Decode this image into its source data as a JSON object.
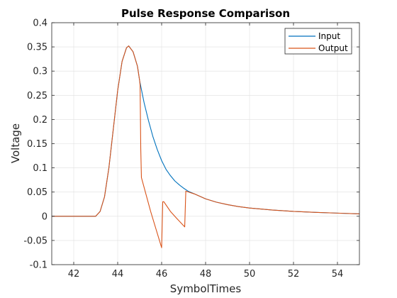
{
  "chart_data": {
    "type": "line",
    "title": "Pulse Response Comparison",
    "xlabel": "SymbolTimes",
    "ylabel": "Voltage",
    "xlim": [
      41,
      55
    ],
    "ylim": [
      -0.1,
      0.4
    ],
    "xticks": [
      42,
      44,
      46,
      48,
      50,
      52,
      54
    ],
    "yticks": [
      -0.1,
      -0.05,
      0,
      0.05,
      0.1,
      0.15,
      0.2,
      0.25,
      0.3,
      0.35,
      0.4
    ],
    "xtick_labels": [
      "42",
      "44",
      "46",
      "48",
      "50",
      "52",
      "54"
    ],
    "ytick_labels": [
      "-0.1",
      "-0.05",
      "0",
      "0.05",
      "0.1",
      "0.15",
      "0.2",
      "0.25",
      "0.3",
      "0.35",
      "0.4"
    ],
    "grid": true,
    "legend_position": "top-right",
    "series": [
      {
        "name": "Input",
        "color": "#0072bd",
        "x": [
          41,
          43.0,
          43.2,
          43.4,
          43.6,
          43.8,
          44.0,
          44.2,
          44.4,
          44.5,
          44.7,
          44.9,
          45.0,
          45.2,
          45.4,
          45.6,
          45.8,
          46.0,
          46.2,
          46.4,
          46.6,
          46.8,
          47.0,
          47.2,
          47.5,
          48.0,
          48.5,
          49.0,
          49.5,
          50.0,
          51.0,
          52.0,
          53.0,
          54.0,
          55.0
        ],
        "y": [
          0,
          0,
          0.01,
          0.04,
          0.1,
          0.18,
          0.26,
          0.32,
          0.348,
          0.352,
          0.34,
          0.31,
          0.28,
          0.235,
          0.198,
          0.165,
          0.138,
          0.115,
          0.097,
          0.084,
          0.073,
          0.065,
          0.058,
          0.052,
          0.046,
          0.036,
          0.029,
          0.024,
          0.02,
          0.017,
          0.013,
          0.01,
          0.008,
          0.0065,
          0.005
        ]
      },
      {
        "name": "Output",
        "color": "#d95319",
        "x": [
          41,
          43.0,
          43.2,
          43.4,
          43.6,
          43.8,
          44.0,
          44.2,
          44.4,
          44.5,
          44.7,
          44.9,
          45.0,
          45.02,
          45.05,
          45.08,
          45.5,
          46.0,
          46.05,
          46.1,
          46.4,
          46.7,
          47.05,
          47.1,
          47.5,
          48.0,
          48.5,
          49.0,
          49.5,
          50.0,
          51.0,
          52.0,
          53.0,
          54.0,
          55.0
        ],
        "y": [
          0,
          0,
          0.01,
          0.04,
          0.1,
          0.18,
          0.26,
          0.32,
          0.348,
          0.352,
          0.34,
          0.31,
          0.28,
          0.27,
          0.14,
          0.08,
          0.01,
          -0.065,
          0.03,
          0.03,
          0.01,
          -0.005,
          -0.022,
          0.052,
          0.046,
          0.036,
          0.029,
          0.024,
          0.02,
          0.017,
          0.013,
          0.01,
          0.008,
          0.0065,
          0.005
        ]
      }
    ]
  }
}
